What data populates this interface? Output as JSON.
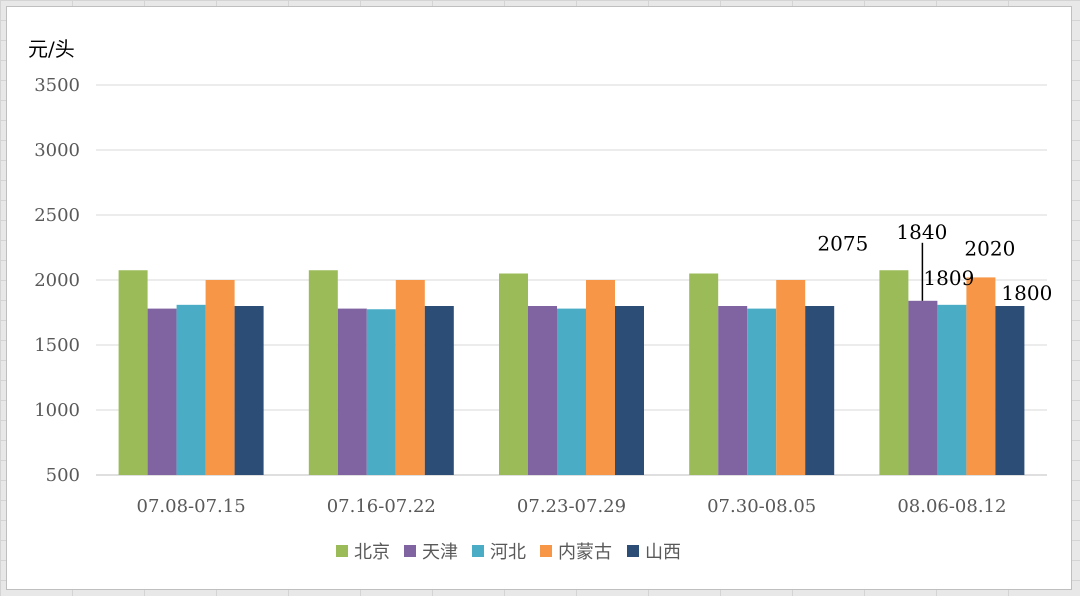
{
  "chart_data": {
    "type": "bar",
    "unit_label": "元/头",
    "categories": [
      "07.08-07.15",
      "07.16-07.22",
      "07.23-07.29",
      "07.30-08.05",
      "08.06-08.12"
    ],
    "series": [
      {
        "name": "北京",
        "color": "#9bbb59",
        "values": [
          2075,
          2075,
          2050,
          2050,
          2075
        ]
      },
      {
        "name": "天津",
        "color": "#8064a2",
        "values": [
          1780,
          1780,
          1800,
          1800,
          1840
        ]
      },
      {
        "name": "河北",
        "color": "#4bacc6",
        "values": [
          1809,
          1775,
          1780,
          1780,
          1809
        ]
      },
      {
        "name": "内蒙古",
        "color": "#f79646",
        "values": [
          2000,
          2000,
          2000,
          2000,
          2020
        ]
      },
      {
        "name": "山西",
        "color": "#2c4d75",
        "values": [
          1800,
          1800,
          1800,
          1800,
          1800
        ]
      }
    ],
    "ylim": [
      500,
      3500
    ],
    "yticks": [
      500,
      1000,
      1500,
      2000,
      2500,
      3000,
      3500
    ],
    "grid": true,
    "legend_position": "bottom",
    "data_labels": {
      "category_index": 4,
      "values": [
        "2075",
        "1840",
        "1809",
        "2020",
        "1800"
      ]
    }
  }
}
